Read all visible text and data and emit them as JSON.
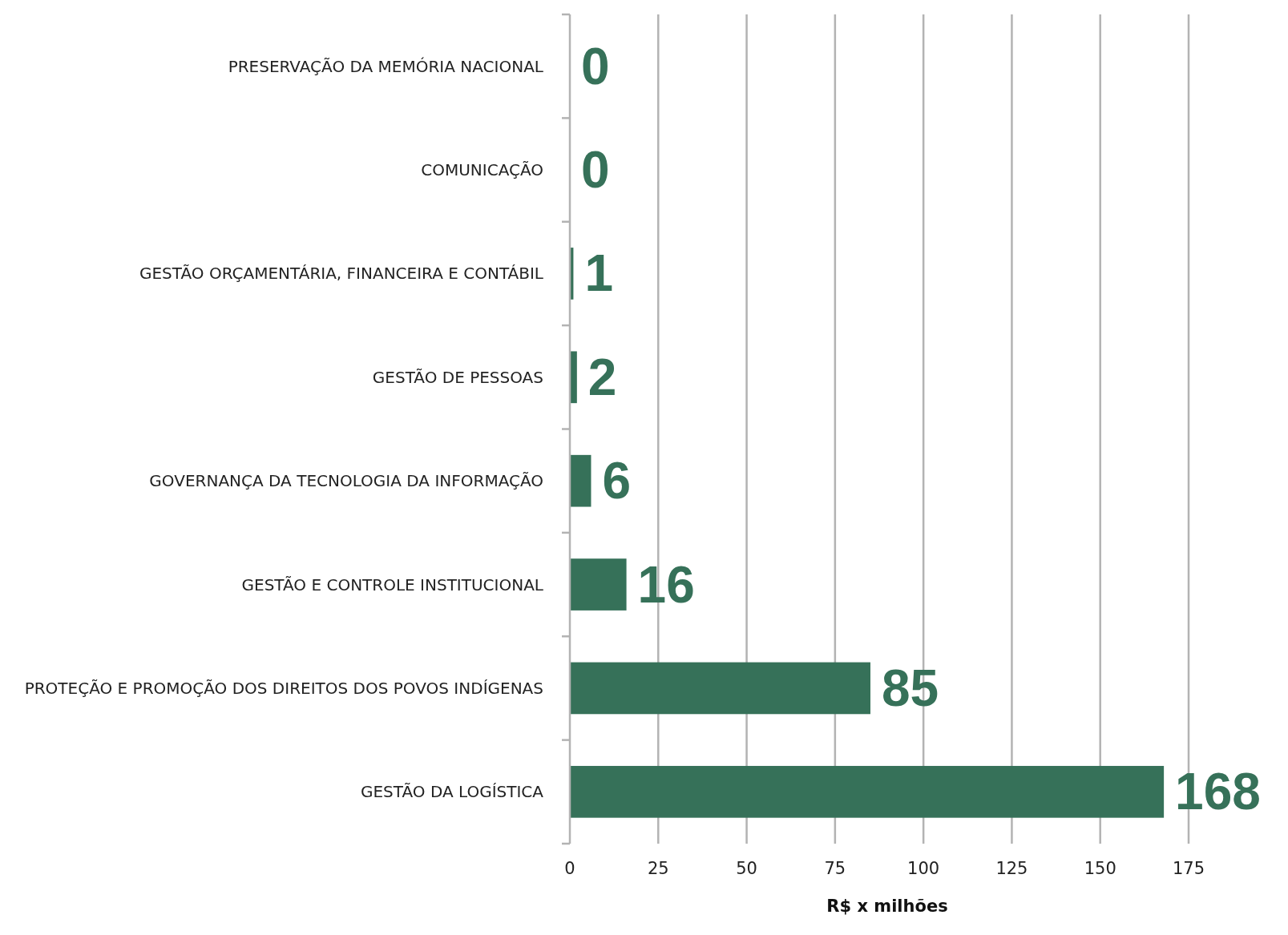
{
  "chart_data": {
    "type": "bar",
    "orientation": "horizontal",
    "categories": [
      "PRESERVAÇÃO DA MEMÓRIA NACIONAL",
      "COMUNICAÇÃO",
      "GESTÃO ORÇAMENTÁRIA, FINANCEIRA E CONTÁBIL",
      "GESTÃO DE PESSOAS",
      "GOVERNANÇA DA TECNOLOGIA DA INFORMAÇÃO",
      "GESTÃO E CONTROLE INSTITUCIONAL",
      "PROTEÇÃO E PROMOÇÃO DOS DIREITOS DOS POVOS INDÍGENAS",
      "GESTÃO DA LOGÍSTICA"
    ],
    "values": [
      0,
      0,
      1,
      2,
      6,
      16,
      85,
      168
    ],
    "color": "#367159",
    "xlim": [
      0,
      175
    ],
    "xticks": [
      0,
      25,
      50,
      75,
      100,
      125,
      150,
      175
    ],
    "xlabel": "R$ x milhões",
    "grid": "x",
    "data_labels": true
  }
}
